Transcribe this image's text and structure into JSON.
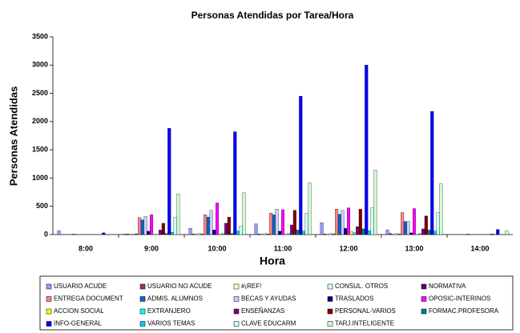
{
  "chart_data": {
    "type": "bar",
    "title": "Personas Atendidas por Tarea/Hora",
    "x_label": "Hora",
    "y_label": "Personas Atendidas",
    "categories": [
      "8:00",
      "9:00",
      "10:00",
      "11:00",
      "12:00",
      "13:00",
      "14:00"
    ],
    "ylim": [
      0,
      3500
    ],
    "yticks": [
      0,
      500,
      1000,
      1500,
      2000,
      2500,
      3000,
      3500
    ],
    "series": [
      {
        "name": "USUARIO ACUDE",
        "color": "#9999ff",
        "values": [
          70,
          10,
          110,
          190,
          210,
          80,
          0
        ]
      },
      {
        "name": "USUARIO NO ACUDE",
        "color": "#993366",
        "values": [
          0,
          10,
          10,
          10,
          10,
          20,
          0
        ]
      },
      {
        "name": "#¡REF!",
        "color": "#ffffcc",
        "values": [
          0,
          0,
          0,
          0,
          0,
          0,
          0
        ]
      },
      {
        "name": "CONSUL. OTROS",
        "color": "#ccffff",
        "values": [
          0,
          10,
          20,
          20,
          20,
          20,
          0
        ]
      },
      {
        "name": "NORMATIVA",
        "color": "#660066",
        "values": [
          0,
          10,
          10,
          10,
          10,
          10,
          0
        ]
      },
      {
        "name": "ENTREGA DOCUMENT",
        "color": "#ff8080",
        "values": [
          10,
          300,
          350,
          380,
          450,
          390,
          10
        ]
      },
      {
        "name": "ADMIS. ALUMNOS",
        "color": "#0066cc",
        "values": [
          0,
          260,
          310,
          350,
          360,
          230,
          0
        ]
      },
      {
        "name": "BECAS Y AYUDAS",
        "color": "#ccccff",
        "values": [
          0,
          320,
          430,
          450,
          430,
          230,
          0
        ]
      },
      {
        "name": "TRASLADOS",
        "color": "#000080",
        "values": [
          0,
          60,
          80,
          60,
          110,
          30,
          0
        ]
      },
      {
        "name": "OPOSIC-INTERINOS",
        "color": "#ff00ff",
        "values": [
          0,
          350,
          560,
          440,
          470,
          460,
          0
        ]
      },
      {
        "name": "ACCION SOCIAL",
        "color": "#ffff00",
        "values": [
          0,
          0,
          0,
          0,
          50,
          0,
          0
        ]
      },
      {
        "name": "EXTRANJERO",
        "color": "#00ffff",
        "values": [
          0,
          0,
          20,
          20,
          30,
          20,
          0
        ]
      },
      {
        "name": "ENSEÑANZAS",
        "color": "#800080",
        "values": [
          0,
          80,
          200,
          170,
          140,
          100,
          0
        ]
      },
      {
        "name": "PERSONAL-VARIOS",
        "color": "#800000",
        "values": [
          0,
          200,
          310,
          430,
          450,
          330,
          10
        ]
      },
      {
        "name": "FORMAC.PROFESORA",
        "color": "#008080",
        "values": [
          0,
          20,
          20,
          80,
          100,
          80,
          0
        ]
      },
      {
        "name": "INFO-GENERAL",
        "color": "#0000ff",
        "values": [
          30,
          1880,
          1820,
          2450,
          3000,
          2180,
          90
        ]
      },
      {
        "name": "VARIOS TEMAS",
        "color": "#00ccff",
        "values": [
          0,
          40,
          60,
          60,
          70,
          60,
          0
        ]
      },
      {
        "name": "CLAVE EDUCARM",
        "color": "#ccffff",
        "values": [
          0,
          300,
          150,
          380,
          470,
          390,
          0
        ]
      },
      {
        "name": "TARJ.INTELIGENTE",
        "color": "#ccffcc",
        "values": [
          0,
          720,
          740,
          920,
          1140,
          900,
          70
        ]
      }
    ]
  }
}
